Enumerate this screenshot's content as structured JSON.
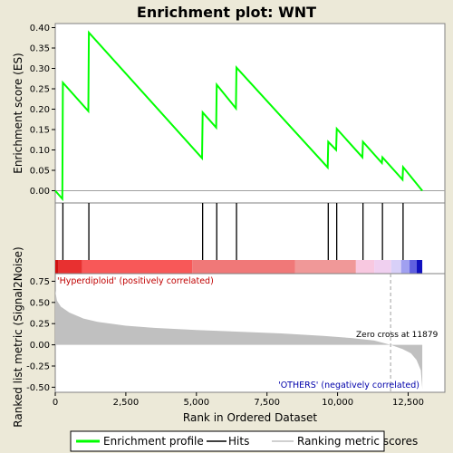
{
  "chart_data": {
    "type": "line",
    "title": "Enrichment plot: WNT",
    "xlabel": "Rank in Ordered Dataset",
    "xlim": [
      0,
      13800
    ],
    "x_ticks": [
      0,
      2500,
      5000,
      7500,
      10000,
      12500
    ],
    "x_tick_labels": [
      "0",
      "2,500",
      "5,000",
      "7,500",
      "10,000",
      "12,500"
    ],
    "es_panel": {
      "ylabel": "Enrichment score (ES)",
      "ylim": [
        -0.03,
        0.41
      ],
      "y_ticks": [
        0.0,
        0.05,
        0.1,
        0.15,
        0.2,
        0.25,
        0.3,
        0.35,
        0.4
      ],
      "y_tick_labels": [
        "0.00",
        "0.05",
        "0.10",
        "0.15",
        "0.20",
        "0.25",
        "0.30",
        "0.35",
        "0.40"
      ],
      "color": "#00ff00",
      "series": [
        {
          "values": [
            [
              0,
              0.0
            ],
            [
              250,
              -0.02
            ],
            [
              270,
              0.265
            ],
            [
              1170,
              0.195
            ],
            [
              1190,
              0.388
            ],
            [
              5200,
              0.08
            ],
            [
              5220,
              0.192
            ],
            [
              5700,
              0.155
            ],
            [
              5720,
              0.26
            ],
            [
              6400,
              0.202
            ],
            [
              6420,
              0.302
            ],
            [
              9650,
              0.057
            ],
            [
              9670,
              0.12
            ],
            [
              9950,
              0.1
            ],
            [
              9970,
              0.152
            ],
            [
              10880,
              0.082
            ],
            [
              10900,
              0.12
            ],
            [
              11570,
              0.068
            ],
            [
              11590,
              0.082
            ],
            [
              12300,
              0.027
            ],
            [
              12320,
              0.058
            ],
            [
              13000,
              0.0
            ]
          ]
        }
      ]
    },
    "hits": [
      270,
      1190,
      5220,
      5720,
      6420,
      9670,
      9970,
      10900,
      11590,
      12320
    ],
    "metric_panel": {
      "ylabel": "Ranked list metric (Signal2Noise)",
      "ylim": [
        -0.56,
        0.84
      ],
      "y_ticks": [
        -0.5,
        -0.25,
        0.0,
        0.25,
        0.5,
        0.75
      ],
      "y_tick_labels": [
        "-0.50",
        "-0.25",
        "0.00",
        "0.25",
        "0.50",
        "0.75"
      ],
      "fill_color": "#c0c0c0",
      "values": [
        [
          0,
          0.64
        ],
        [
          60,
          0.52
        ],
        [
          200,
          0.45
        ],
        [
          500,
          0.38
        ],
        [
          1000,
          0.31
        ],
        [
          1500,
          0.27
        ],
        [
          2500,
          0.225
        ],
        [
          3500,
          0.2
        ],
        [
          5000,
          0.175
        ],
        [
          6500,
          0.155
        ],
        [
          8000,
          0.135
        ],
        [
          9500,
          0.105
        ],
        [
          10500,
          0.08
        ],
        [
          11300,
          0.05
        ],
        [
          11879,
          0.0
        ],
        [
          12300,
          -0.05
        ],
        [
          12600,
          -0.1
        ],
        [
          12800,
          -0.18
        ],
        [
          12950,
          -0.3
        ],
        [
          13000,
          -0.52
        ]
      ],
      "zero_cross_label": "Zero cross at 11879",
      "zero_cross": 11879,
      "positive_label": "'Hyperdiploid' (positively correlated)",
      "negative_label": "'OTHERS' (negatively correlated)",
      "positive_label_color": "#c00000",
      "negative_label_color": "#0000aa"
    },
    "heat_bar": {
      "segments": [
        {
          "from": 0,
          "to": 120,
          "color": "#d01010"
        },
        {
          "from": 120,
          "to": 950,
          "color": "#e83030"
        },
        {
          "from": 950,
          "to": 4850,
          "color": "#f85858"
        },
        {
          "from": 4850,
          "to": 8500,
          "color": "#f07878"
        },
        {
          "from": 8500,
          "to": 10650,
          "color": "#f09898"
        },
        {
          "from": 10650,
          "to": 11300,
          "color": "#f8c8e0"
        },
        {
          "from": 11300,
          "to": 11900,
          "color": "#f0d0f0"
        },
        {
          "from": 11900,
          "to": 12250,
          "color": "#d8d0f8"
        },
        {
          "from": 12250,
          "to": 12550,
          "color": "#a0a0f0"
        },
        {
          "from": 12550,
          "to": 12800,
          "color": "#6060e0"
        },
        {
          "from": 12800,
          "to": 13000,
          "color": "#1010c0"
        }
      ]
    },
    "legend": {
      "items": [
        {
          "label": "Enrichment profile",
          "color": "#00ff00"
        },
        {
          "label": "Hits",
          "color": "#000000"
        },
        {
          "label": "Ranking metric scores",
          "color": "#c0c0c0"
        }
      ]
    }
  }
}
